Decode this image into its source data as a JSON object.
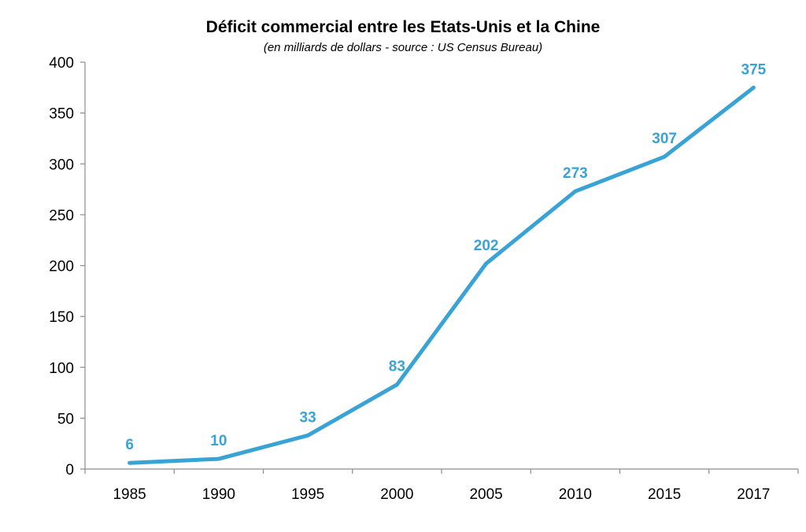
{
  "chart_data": {
    "type": "line",
    "title": "Déficit commercial entre les Etats-Unis et la Chine",
    "subtitle": "(en milliards de dollars - source : US Census Bureau)",
    "xlabel": "",
    "ylabel": "",
    "categories": [
      "1985",
      "1990",
      "1995",
      "2000",
      "2005",
      "2010",
      "2015",
      "2017"
    ],
    "series": [
      {
        "values": [
          6,
          10,
          33,
          83,
          202,
          273,
          307,
          375
        ],
        "color": "#3aa3d6"
      }
    ],
    "data_labels": [
      "6",
      "10",
      "33",
      "83",
      "202",
      "273",
      "307",
      "375"
    ],
    "ylim": [
      0,
      400
    ],
    "y_ticks": [
      0,
      50,
      100,
      150,
      200,
      250,
      300,
      350,
      400
    ],
    "y_tick_labels": [
      "0",
      "50",
      "100",
      "150",
      "200",
      "250",
      "300",
      "350",
      "400"
    ],
    "grid": false,
    "legend": "none"
  }
}
